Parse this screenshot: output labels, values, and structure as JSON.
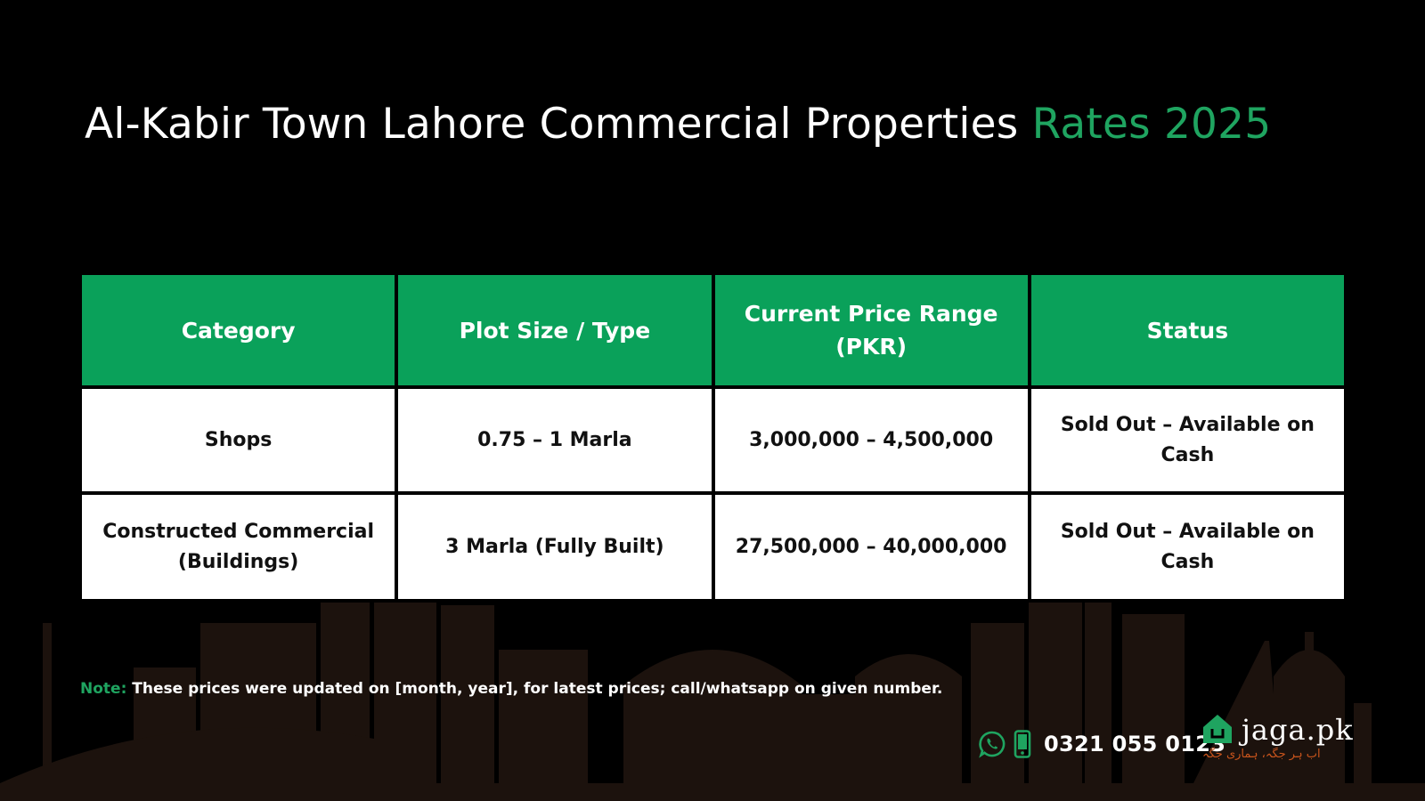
{
  "title": {
    "main": "Al-Kabir Town Lahore Commercial Properties",
    "accent": "Rates 2025"
  },
  "table": {
    "headers": [
      "Category",
      "Plot Size / Type",
      "Current Price Range (PKR)",
      "Status"
    ],
    "rows": [
      {
        "category": "Shops",
        "plot_size": "0.75 – 1 Marla",
        "price_range": "3,000,000 – 4,500,000",
        "status": "Sold Out – Available on Cash"
      },
      {
        "category": "Constructed Commercial (Buildings)",
        "plot_size": "3 Marla (Fully Built)",
        "price_range": "27,500,000 – 40,000,000",
        "status": "Sold Out – Available on Cash"
      }
    ]
  },
  "note": {
    "label": "Note:",
    "text": "These prices were updated on [month, year], for latest prices; call/whatsapp on given number."
  },
  "contact": {
    "phone": "0321 055 0123",
    "icons": [
      "whatsapp-icon",
      "mobile-phone-icon"
    ]
  },
  "brand": {
    "name": "jaga.pk",
    "tagline": "اب ہر جگہ، ہماری جگہ",
    "icon": "house-logo-icon"
  },
  "colors": {
    "accent": "#1fa460",
    "header_bg": "#0aa15a",
    "background": "#000000",
    "tagline": "#c8541c",
    "skyline": "#1c120d"
  }
}
